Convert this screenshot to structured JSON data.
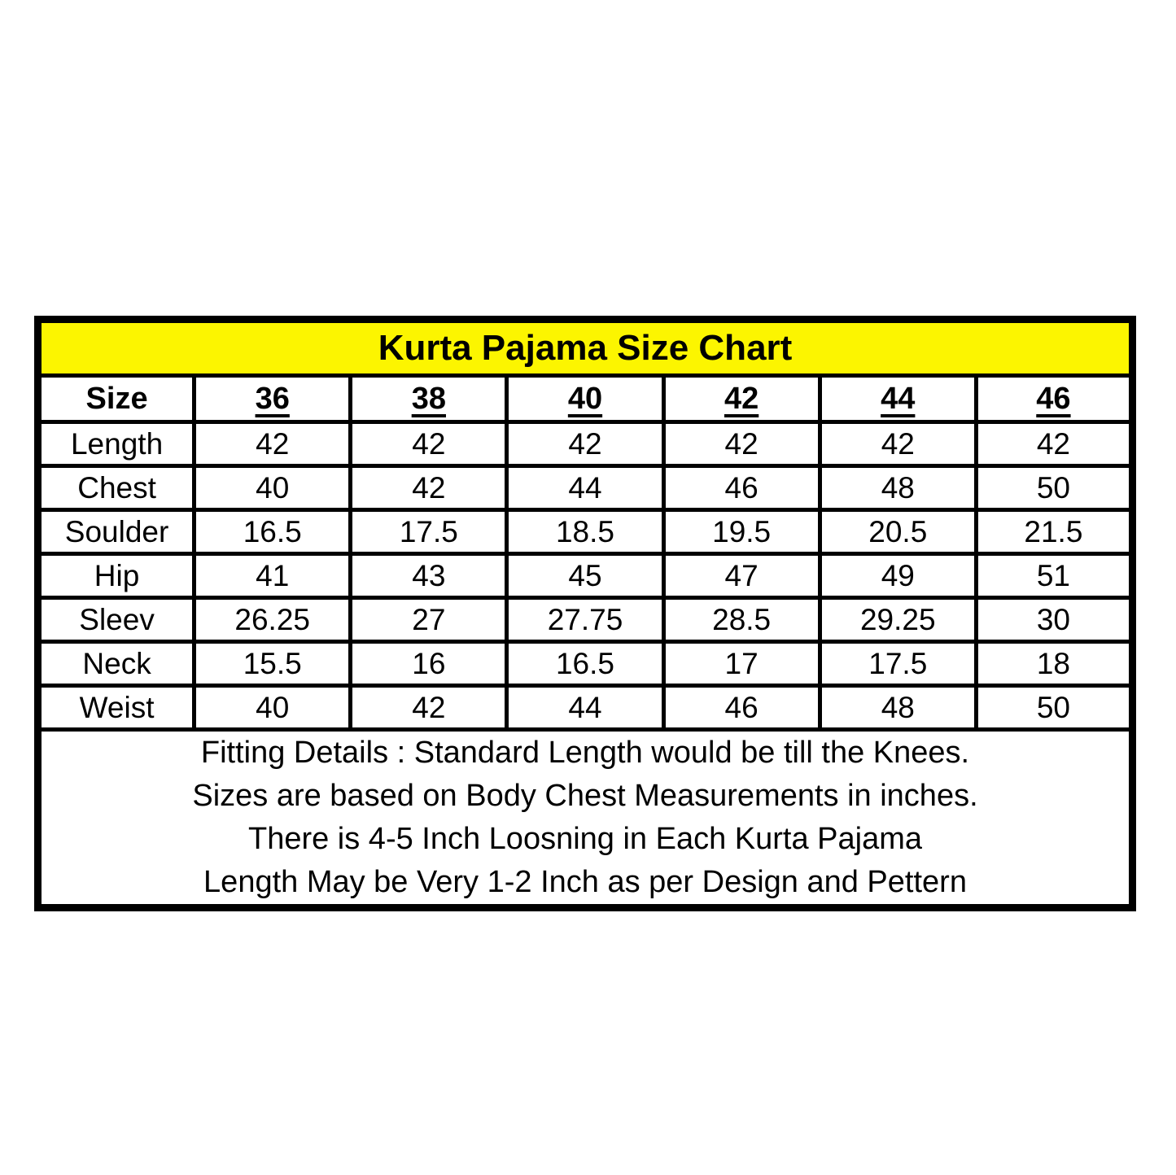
{
  "chart_data": {
    "type": "table",
    "title": "Kurta Pajama Size Chart",
    "columns": [
      "Size",
      "36",
      "38",
      "40",
      "42",
      "44",
      "46"
    ],
    "rows": [
      {
        "label": "Length",
        "values": [
          "42",
          "42",
          "42",
          "42",
          "42",
          "42"
        ]
      },
      {
        "label": "Chest",
        "values": [
          "40",
          "42",
          "44",
          "46",
          "48",
          "50"
        ]
      },
      {
        "label": "Soulder",
        "values": [
          "16.5",
          "17.5",
          "18.5",
          "19.5",
          "20.5",
          "21.5"
        ]
      },
      {
        "label": "Hip",
        "values": [
          "41",
          "43",
          "45",
          "47",
          "49",
          "51"
        ]
      },
      {
        "label": "Sleev",
        "values": [
          "26.25",
          "27",
          "27.75",
          "28.5",
          "29.25",
          "30"
        ]
      },
      {
        "label": "Neck",
        "values": [
          "15.5",
          "16",
          "16.5",
          "17",
          "17.5",
          "18"
        ]
      },
      {
        "label": "Weist",
        "values": [
          "40",
          "42",
          "44",
          "46",
          "48",
          "50"
        ]
      }
    ],
    "footer_lines": [
      "Fitting Details : Standard Length would be till the Knees.",
      "Sizes are based on Body Chest Measurements in inches.",
      "There is 4-5 Inch Loosning in Each Kurta Pajama",
      "Length May be Very 1-2 Inch as per Design and Pettern"
    ],
    "colors": {
      "title_background": "#FCF500",
      "border": "#000000",
      "text": "#000000",
      "page_background": "#FFFFFF"
    },
    "layout": {
      "columns_count": 7,
      "units": "inches"
    }
  }
}
